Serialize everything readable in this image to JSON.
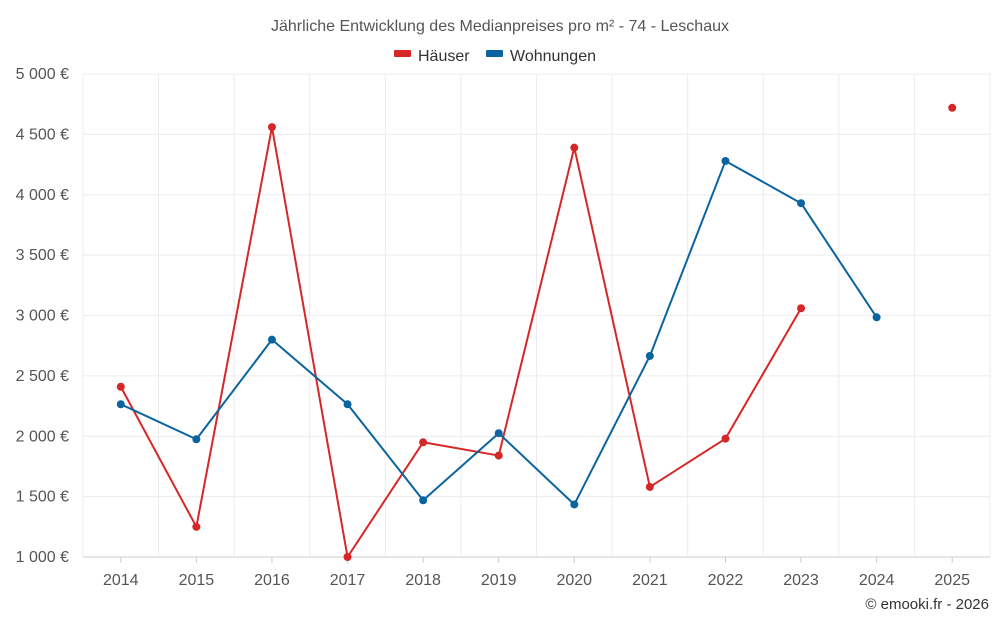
{
  "chart_data": {
    "type": "line",
    "title": "Jährliche Entwicklung des Medianpreises pro m² - 74 - Leschaux",
    "categories": [
      "2014",
      "2015",
      "2016",
      "2017",
      "2018",
      "2019",
      "2020",
      "2021",
      "2022",
      "2023",
      "2024",
      "2025"
    ],
    "ylim": [
      1000,
      5000
    ],
    "yticks": [
      1000,
      1500,
      2000,
      2500,
      3000,
      3500,
      4000,
      4500,
      5000
    ],
    "ytick_labels": [
      "1 000 €",
      "1 500 €",
      "2 000 €",
      "2 500 €",
      "3 000 €",
      "3 500 €",
      "4 000 €",
      "4 500 €",
      "5 000 €"
    ],
    "legend_position": "top-center",
    "grid": true,
    "series": [
      {
        "name": "Häuser",
        "color": "#d62728",
        "values": [
          2410,
          1250,
          4560,
          1000,
          1950,
          1840,
          4390,
          1580,
          1980,
          3060,
          null,
          4720
        ]
      },
      {
        "name": "Wohnungen",
        "color": "#0b64a0",
        "values": [
          2265,
          1975,
          2800,
          2265,
          1470,
          2025,
          1435,
          2665,
          4280,
          3930,
          2985,
          null
        ]
      }
    ]
  },
  "credit": "© emooki.fr - 2026"
}
